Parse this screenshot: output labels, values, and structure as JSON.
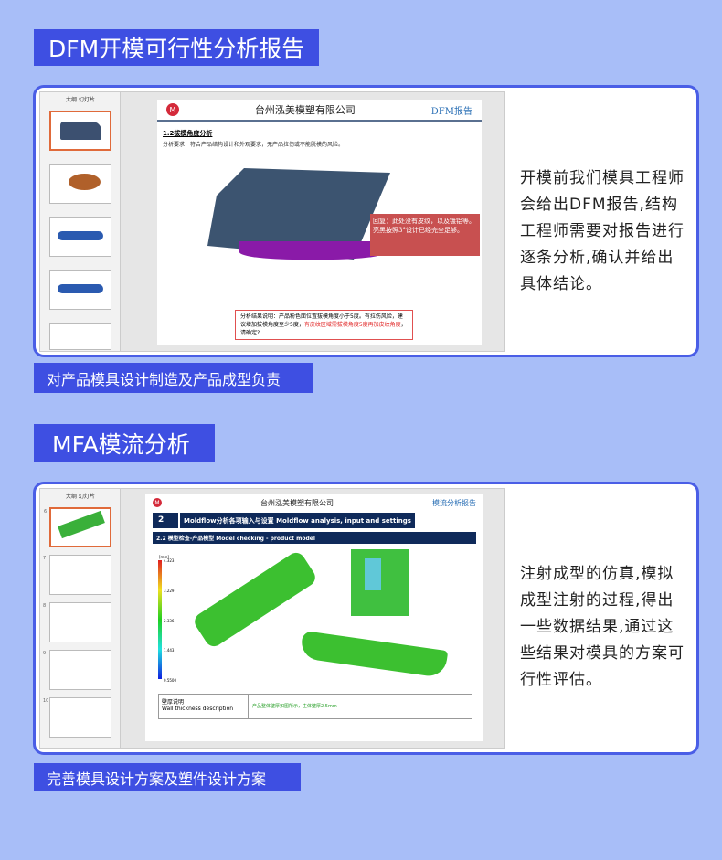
{
  "section1": {
    "title": "DFM开模可行性分析报告",
    "description": "开模前我们模具工程师会给出DFM报告,结构工程师需要对报告进行逐条分析,确认并给出具体结论。",
    "label": "对产品模具设计制造及产品成型负责",
    "slide": {
      "company": "台州泓美模塑有限公司",
      "report": "DFM报告",
      "heading": "1.2拔模角度分析",
      "requirement": "分析要求：符合产品结构设计和外观要求，无产品拉伤或不能脱模的风险。",
      "reply": "回复：此处没有皮纹，以及镀铝等。亮黑按照3°设计已经完全足够。",
      "conclusion_black": "分析结果说明：产品粉色面位置拔模角度小于5度。有拉伤风险，建议增加拔模角度至少5度，",
      "conclusion_red": "有皮纹区域需拔模角度5度再加皮纹角度",
      "conclusion_end": "，请确定?",
      "thumbs_header": "大纲 幻灯片"
    }
  },
  "section2": {
    "title": "MFA模流分析",
    "description": "注射成型的仿真,模拟成型注射的过程,得出一些数据结果,通过这些结果对模具的方案可行性评估。",
    "label": "完善模具设计方案及塑件设计方案",
    "slide": {
      "company": "台州泓美模塑有限公司",
      "report": "模流分析报告",
      "num": "2",
      "banner": "Moldflow分析各项输入与设置 Moldflow analysis, input and settings",
      "sub": "2.2 模型检查-产品模型 Model checking - product model",
      "unit": "[mm]",
      "scale": [
        "4.323",
        "3.229",
        "2.336",
        "1.443",
        "0.5500"
      ],
      "table_label_cn": "壁厚说明",
      "table_label_en": "Wall thickness description",
      "table_value": "产品整体壁厚如图所示，主体壁厚2.5mm",
      "thumbs_header": "大纲 幻灯片",
      "thumb_nums": [
        "6",
        "7",
        "8",
        "9",
        "10"
      ]
    }
  }
}
